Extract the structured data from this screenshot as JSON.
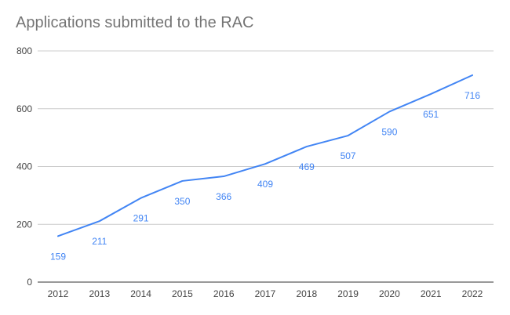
{
  "chart_data": {
    "type": "line",
    "title": "Applications submitted to the RAC",
    "xlabel": "",
    "ylabel": "",
    "categories": [
      "2012",
      "2013",
      "2014",
      "2015",
      "2016",
      "2017",
      "2018",
      "2019",
      "2020",
      "2021",
      "2022"
    ],
    "series": [
      {
        "values": [
          159,
          211,
          291,
          350,
          366,
          409,
          469,
          507,
          590,
          651,
          716
        ],
        "color": "#4285f4"
      }
    ],
    "data_labels": [
      "159",
      "211",
      "291",
      "350",
      "366",
      "409",
      "469",
      "507",
      "590",
      "651",
      "716"
    ],
    "ylim": [
      0,
      800
    ],
    "y_ticks": [
      "0",
      "200",
      "400",
      "600",
      "800"
    ],
    "y_tick_values": [
      0,
      200,
      400,
      600,
      800
    ],
    "grid": true,
    "legend": "none"
  }
}
